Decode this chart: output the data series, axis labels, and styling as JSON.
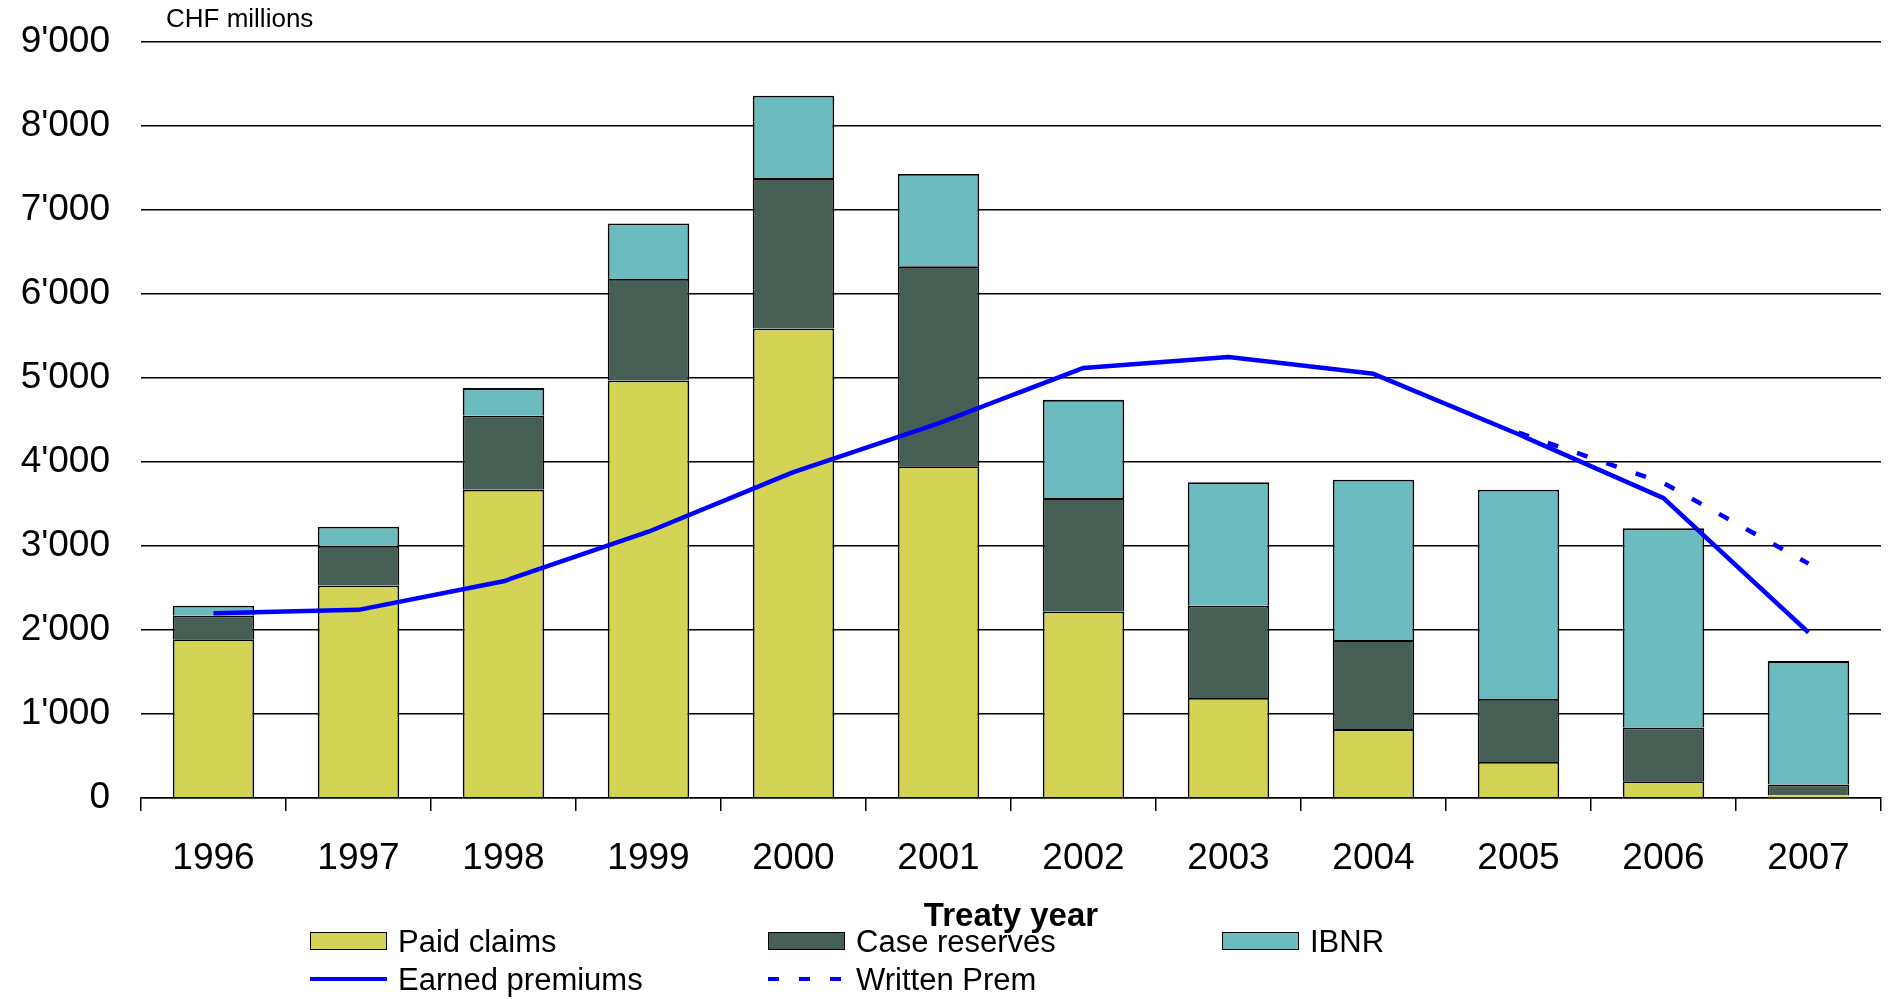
{
  "chart_data": {
    "type": "bar",
    "stacked": true,
    "ylabel": "CHF millions",
    "xlabel": "Treaty year",
    "categories": [
      "1996",
      "1997",
      "1998",
      "1999",
      "2000",
      "2001",
      "2002",
      "2003",
      "2004",
      "2005",
      "2006",
      "2007"
    ],
    "series": [
      {
        "name": "Paid claims",
        "color": "#d3d356",
        "values": [
          1890,
          2530,
          3670,
          4970,
          5590,
          3950,
          2220,
          1190,
          820,
          430,
          200,
          30
        ]
      },
      {
        "name": "Case reserves",
        "color": "#465f54",
        "values": [
          280,
          470,
          880,
          1210,
          1790,
          2380,
          1350,
          1100,
          1060,
          750,
          640,
          130
        ]
      },
      {
        "name": "IBNR",
        "color": "#6cbcbf",
        "values": [
          120,
          230,
          330,
          660,
          980,
          1100,
          1170,
          1470,
          1910,
          2490,
          2370,
          1470
        ]
      },
      {
        "name": "Earned premiums",
        "type": "line",
        "color": "#0000ff",
        "values": [
          2200,
          2240,
          2580,
          3170,
          3880,
          4460,
          5120,
          5250,
          5050,
          4330,
          3570,
          1970
        ]
      },
      {
        "name": "Written Prem",
        "type": "line",
        "line_style": "dashed",
        "color": "#0000ff",
        "values": [
          null,
          null,
          null,
          null,
          null,
          null,
          null,
          null,
          null,
          4350,
          3750,
          2790
        ]
      }
    ],
    "ylim": [
      0,
      9000
    ],
    "yticks": [
      0,
      {
        "value": 1000,
        "label": "1'000"
      },
      {
        "value": 2000,
        "label": "2'000"
      },
      {
        "value": 3000,
        "label": "3'000"
      },
      {
        "value": 4000,
        "label": "4'000"
      },
      {
        "value": 5000,
        "label": "5'000"
      },
      {
        "value": 6000,
        "label": "6'000"
      },
      {
        "value": 7000,
        "label": "7'000"
      },
      {
        "value": 8000,
        "label": "8'000"
      },
      {
        "value": 9000,
        "label": "9'000"
      }
    ],
    "grid": "y",
    "legend": "bottom",
    "marker": "none"
  }
}
